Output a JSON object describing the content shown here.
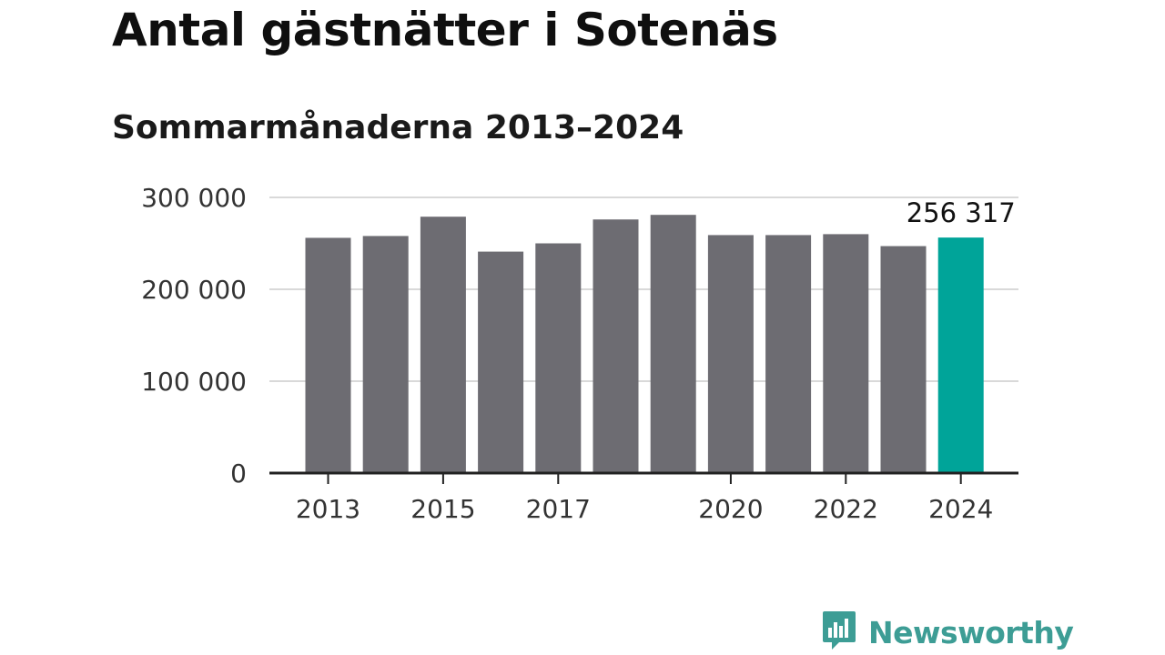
{
  "header": {
    "title": "Antal gästnätter i Sotenäs",
    "subtitle": "Sommarmånaderna 2013–2024"
  },
  "brand": {
    "name": "Newsworthy",
    "icon": "newsworthy-logo-icon",
    "color": "#3d9d95"
  },
  "colors": {
    "bar": "#6d6c72",
    "highlight": "#00a499",
    "grid": "#d9d9d9",
    "axis": "#222222"
  },
  "chart_data": {
    "type": "bar",
    "title": "Antal gästnätter i Sotenäs",
    "subtitle": "Sommarmånaderna 2013–2024",
    "xlabel": "",
    "ylabel": "",
    "categories": [
      "2013",
      "2014",
      "2015",
      "2016",
      "2017",
      "2018",
      "2019",
      "2020",
      "2021",
      "2022",
      "2023",
      "2024"
    ],
    "x_tick_labels": [
      "2013",
      "",
      "2015",
      "",
      "2017",
      "",
      "",
      "2020",
      "",
      "2022",
      "",
      "2024"
    ],
    "values": [
      256000,
      258000,
      279000,
      241000,
      250000,
      276000,
      281000,
      259000,
      259000,
      260000,
      247000,
      256317
    ],
    "highlight_index": 11,
    "highlight_label": "256 317",
    "ylim": [
      0,
      300000
    ],
    "yticks": [
      0,
      100000,
      200000,
      300000
    ],
    "ytick_labels": [
      "0",
      "100 000",
      "200 000",
      "300 000"
    ],
    "grid": true,
    "legend": "none"
  }
}
